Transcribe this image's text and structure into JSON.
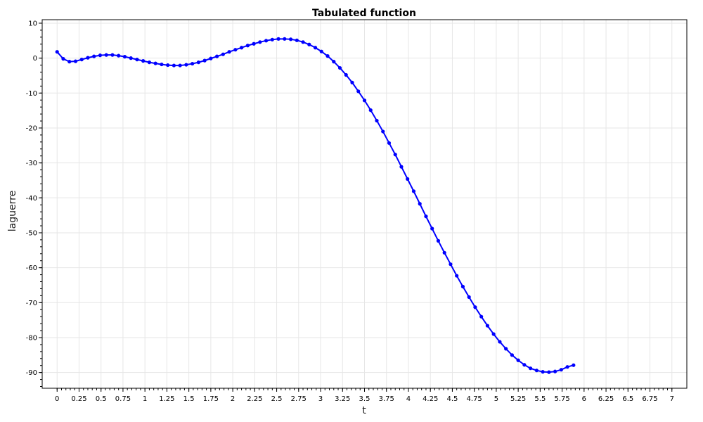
{
  "chart_data": {
    "type": "line",
    "title": "Tabulated function",
    "xlabel": "t",
    "ylabel": "laguerre",
    "xlim": [
      -0.17,
      7.17
    ],
    "ylim": [
      -94.5,
      11
    ],
    "x_ticks": [
      "0",
      "0.25",
      "0.5",
      "0.75",
      "1",
      "1.25",
      "1.5",
      "1.75",
      "2",
      "2.25",
      "2.5",
      "2.75",
      "3",
      "3.25",
      "3.5",
      "3.75",
      "4",
      "4.25",
      "4.5",
      "4.75",
      "5",
      "5.25",
      "5.5",
      "5.75",
      "6",
      "6.25",
      "6.5",
      "6.75",
      "7"
    ],
    "y_ticks": [
      "10",
      "0",
      "-10",
      "-20",
      "-30",
      "-40",
      "-50",
      "-60",
      "-70",
      "-80",
      "-90"
    ],
    "grid": true,
    "series": [
      {
        "color": "#0000ff",
        "marker": "circle",
        "points": [
          [
            0,
            1.8
          ],
          [
            0.07,
            -0.2
          ],
          [
            0.14,
            -1.0
          ],
          [
            0.21,
            -0.9
          ],
          [
            0.28,
            -0.4
          ],
          [
            0.35,
            0.1
          ],
          [
            0.42,
            0.5
          ],
          [
            0.49,
            0.8
          ],
          [
            0.56,
            0.9
          ],
          [
            0.63,
            0.9
          ],
          [
            0.7,
            0.7
          ],
          [
            0.77,
            0.4
          ],
          [
            0.84,
            0.0
          ],
          [
            0.91,
            -0.4
          ],
          [
            0.98,
            -0.8
          ],
          [
            1.05,
            -1.2
          ],
          [
            1.12,
            -1.5
          ],
          [
            1.19,
            -1.8
          ],
          [
            1.26,
            -2.0
          ],
          [
            1.33,
            -2.1
          ],
          [
            1.4,
            -2.1
          ],
          [
            1.47,
            -1.9
          ],
          [
            1.54,
            -1.6
          ],
          [
            1.61,
            -1.2
          ],
          [
            1.68,
            -0.7
          ],
          [
            1.75,
            -0.1
          ],
          [
            1.82,
            0.5
          ],
          [
            1.89,
            1.1
          ],
          [
            1.96,
            1.8
          ],
          [
            2.03,
            2.4
          ],
          [
            2.1,
            3.0
          ],
          [
            2.17,
            3.6
          ],
          [
            2.24,
            4.1
          ],
          [
            2.31,
            4.6
          ],
          [
            2.38,
            5.0
          ],
          [
            2.45,
            5.3
          ],
          [
            2.52,
            5.5
          ],
          [
            2.59,
            5.5
          ],
          [
            2.66,
            5.4
          ],
          [
            2.73,
            5.1
          ],
          [
            2.8,
            4.6
          ],
          [
            2.87,
            3.9
          ],
          [
            2.94,
            3.0
          ],
          [
            3.01,
            1.9
          ],
          [
            3.08,
            0.6
          ],
          [
            3.15,
            -1.0
          ],
          [
            3.22,
            -2.8
          ],
          [
            3.29,
            -4.8
          ],
          [
            3.36,
            -7.0
          ],
          [
            3.43,
            -9.5
          ],
          [
            3.5,
            -12.1
          ],
          [
            3.57,
            -14.9
          ],
          [
            3.64,
            -17.9
          ],
          [
            3.71,
            -21.0
          ],
          [
            3.78,
            -24.3
          ],
          [
            3.85,
            -27.6
          ],
          [
            3.92,
            -31.1
          ],
          [
            3.99,
            -34.6
          ],
          [
            4.06,
            -38.1
          ],
          [
            4.13,
            -41.7
          ],
          [
            4.2,
            -45.3
          ],
          [
            4.27,
            -48.8
          ],
          [
            4.34,
            -52.3
          ],
          [
            4.41,
            -55.7
          ],
          [
            4.48,
            -59.0
          ],
          [
            4.55,
            -62.3
          ],
          [
            4.62,
            -65.4
          ],
          [
            4.69,
            -68.4
          ],
          [
            4.76,
            -71.3
          ],
          [
            4.83,
            -74.0
          ],
          [
            4.9,
            -76.6
          ],
          [
            4.97,
            -79.0
          ],
          [
            5.04,
            -81.2
          ],
          [
            5.11,
            -83.2
          ],
          [
            5.18,
            -85.0
          ],
          [
            5.25,
            -86.5
          ],
          [
            5.32,
            -87.8
          ],
          [
            5.39,
            -88.8
          ],
          [
            5.46,
            -89.4
          ],
          [
            5.53,
            -89.8
          ],
          [
            5.6,
            -89.9
          ],
          [
            5.67,
            -89.7
          ],
          [
            5.74,
            -89.2
          ],
          [
            5.81,
            -88.4
          ],
          [
            5.88,
            -87.9
          ]
        ]
      }
    ]
  }
}
